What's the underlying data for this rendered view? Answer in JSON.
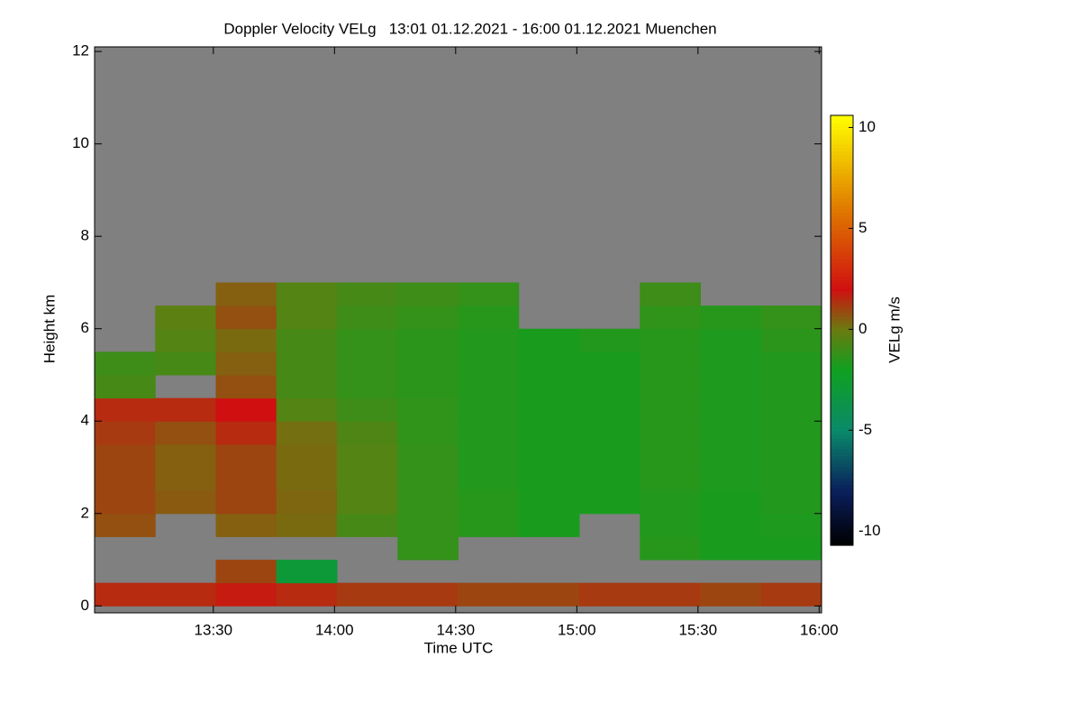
{
  "chart_data": {
    "type": "heatmap",
    "title": "Doppler Velocity VELg   13:01 01.12.2021 - 16:00 01.12.2021 Muenchen",
    "xlabel": "Time UTC",
    "ylabel": "Height km",
    "colorbar_label": "VELg m/s",
    "xlim": [
      13.01,
      16.01
    ],
    "ylim": [
      -0.15,
      12.1
    ],
    "zlim": [
      -10.7,
      10.6
    ],
    "xticks": [
      {
        "value": 13.5,
        "label": "13:30"
      },
      {
        "value": 14,
        "label": "14:00"
      },
      {
        "value": 14.5,
        "label": "14:30"
      },
      {
        "value": 15,
        "label": "15:00"
      },
      {
        "value": 15.5,
        "label": "15:30"
      },
      {
        "value": 16,
        "label": "16:00"
      }
    ],
    "yticks": [
      0,
      2,
      4,
      6,
      8,
      10,
      12
    ],
    "zticks": [
      -10,
      -5,
      0,
      5,
      10
    ],
    "background": "#808080",
    "colorscale": [
      [
        -10.7,
        "#000000"
      ],
      [
        -8,
        "#0a1f5c"
      ],
      [
        -5,
        "#0a8a6a"
      ],
      [
        -2,
        "#10a020"
      ],
      [
        0,
        "#6a7a10"
      ],
      [
        2,
        "#d01010"
      ],
      [
        6,
        "#e07a00"
      ],
      [
        10.6,
        "#ffff00"
      ]
    ],
    "x": [
      13.135,
      13.385,
      13.635,
      13.885,
      14.135,
      14.385,
      14.635,
      14.885,
      15.135,
      15.385,
      15.635,
      15.885
    ],
    "y": [
      0.25,
      0.75,
      1.25,
      1.75,
      2.25,
      2.75,
      3.25,
      3.75,
      4.25,
      4.75,
      5.25,
      5.75,
      6.25,
      6.75
    ],
    "z": [
      [
        1.5,
        1.5,
        1.8,
        1.5,
        1.2,
        1.2,
        1.0,
        1.0,
        1.2,
        1.2,
        1.0,
        1.2
      ],
      [
        null,
        null,
        1.0,
        -3,
        null,
        null,
        null,
        null,
        null,
        null,
        null,
        null
      ],
      [
        null,
        null,
        null,
        null,
        null,
        -1.2,
        null,
        null,
        null,
        -1.5,
        -1.8,
        -1.8
      ],
      [
        0.8,
        null,
        0.5,
        0.3,
        -0.8,
        -1.2,
        -1.5,
        -1.8,
        null,
        -1.6,
        -1.8,
        -1.7
      ],
      [
        1.0,
        0.6,
        1.0,
        0.4,
        -0.5,
        -1.2,
        -1.5,
        -1.8,
        -1.8,
        -1.6,
        -1.8,
        -1.6
      ],
      [
        1.0,
        0.5,
        1.0,
        0.3,
        -0.5,
        -1.2,
        -1.6,
        -1.8,
        -1.8,
        -1.5,
        -1.7,
        -1.6
      ],
      [
        1.0,
        0.5,
        1.0,
        0.3,
        -0.5,
        -1.2,
        -1.6,
        -1.8,
        -1.8,
        -1.5,
        -1.7,
        -1.6
      ],
      [
        1.2,
        0.8,
        1.5,
        0.2,
        -0.6,
        -1.3,
        -1.6,
        -1.8,
        -1.8,
        -1.5,
        -1.7,
        -1.6
      ],
      [
        1.5,
        1.5,
        2.0,
        -0.5,
        -1.0,
        -1.3,
        -1.6,
        -1.8,
        -1.8,
        -1.5,
        -1.7,
        -1.6
      ],
      [
        -0.8,
        null,
        0.8,
        -0.8,
        -1.2,
        -1.4,
        -1.6,
        -1.8,
        -1.8,
        -1.5,
        -1.7,
        -1.6
      ],
      [
        -1.0,
        -0.8,
        0.5,
        -0.8,
        -1.2,
        -1.4,
        -1.6,
        -1.8,
        -1.8,
        -1.5,
        -1.7,
        -1.6
      ],
      [
        null,
        -0.5,
        0.3,
        -0.8,
        -1.2,
        -1.4,
        -1.6,
        -1.8,
        -1.6,
        -1.5,
        -1.7,
        -1.4
      ],
      [
        null,
        -0.3,
        0.8,
        -0.5,
        -1.0,
        -1.2,
        -1.5,
        null,
        null,
        -1.3,
        -1.5,
        -1.2
      ],
      [
        null,
        null,
        0.5,
        -0.5,
        -0.8,
        -1.0,
        -1.2,
        null,
        null,
        -1.0,
        null,
        null
      ]
    ]
  }
}
